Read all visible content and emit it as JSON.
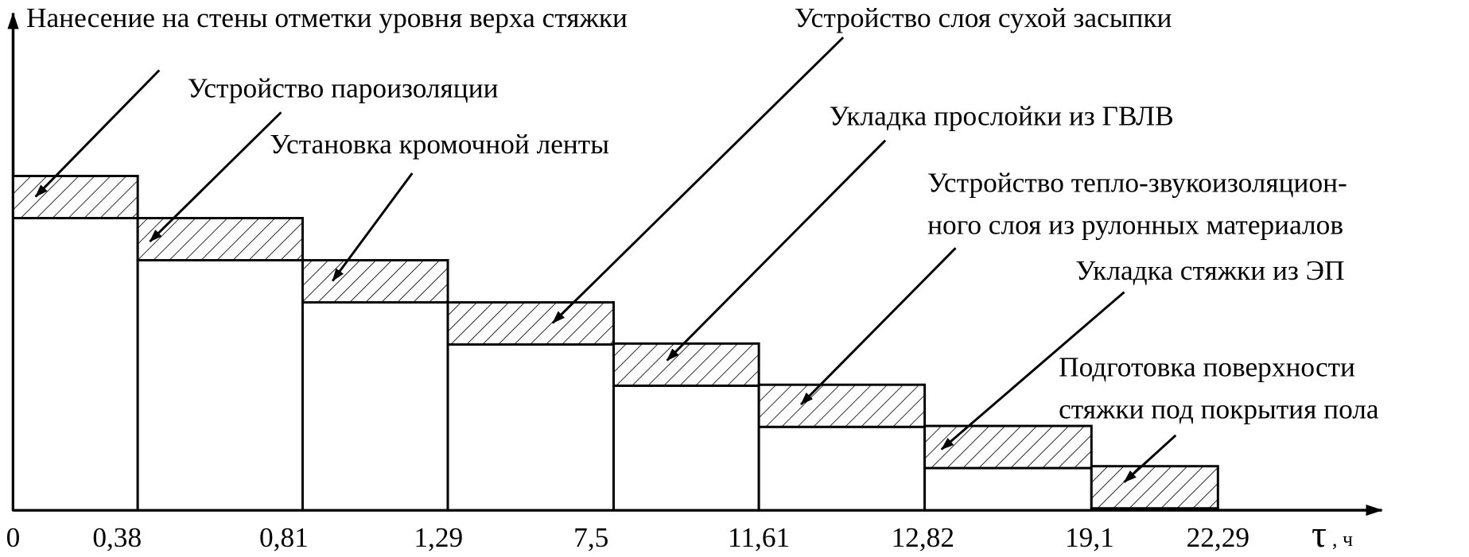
{
  "tasks": [
    {
      "lines": [
        "Нанесение на стены отметки уровня верха стяжки"
      ]
    },
    {
      "lines": [
        "Устройство пароизоляции"
      ]
    },
    {
      "lines": [
        "Установка кромочной ленты"
      ]
    },
    {
      "lines": [
        "Устройство слоя сухой засыпки"
      ]
    },
    {
      "lines": [
        "Укладка прослойки из ГВЛВ"
      ]
    },
    {
      "lines": [
        "Устройство тепло-звукоизоляцион-",
        "ного слоя из рулонных материалов"
      ]
    },
    {
      "lines": [
        "Укладка стяжки из ЭП"
      ]
    },
    {
      "lines": [
        "Подготовка поверхности",
        "стяжки под покрытия пола"
      ]
    }
  ],
  "x_labels": [
    "0",
    "0,38",
    "0,81",
    "1,29",
    "7,5",
    "11,61",
    "12,82",
    "19,1",
    "22,29"
  ],
  "axis_symbol": "τ",
  "axis_unit": ", ч"
}
